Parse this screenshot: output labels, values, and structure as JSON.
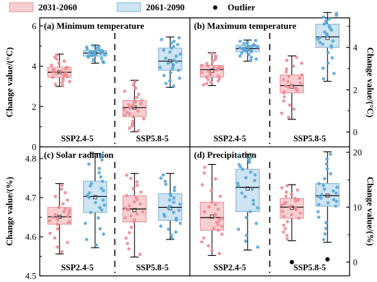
{
  "legend": {
    "items": [
      {
        "label": "2031-2060",
        "fill": "#f7cfd2",
        "stroke": "#e58f98"
      },
      {
        "label": "2061-2090",
        "fill": "#cfe4f3",
        "stroke": "#7fb2d6"
      },
      {
        "label": "Outlier"
      }
    ]
  },
  "colors": {
    "period1_box": "#f7cfd2",
    "period1_edge": "#e58f98",
    "period1_dot": "#ef8a93",
    "period2_box": "#cfe4f3",
    "period2_edge": "#7fb2d6",
    "period2_dot": "#55a6d8"
  },
  "chart_data": [
    {
      "type": "box",
      "id": "a",
      "title": "(a) Minimum temperature",
      "ylabel": "Change value/(°C)",
      "ylim": [
        0,
        6.4
      ],
      "yticks": [
        0,
        2,
        4,
        6
      ],
      "groups": [
        "SSP2.4-5",
        "SSP5.8-5"
      ],
      "boxes": [
        {
          "group": "SSP2.4-5",
          "series": "2031-2060",
          "min": 3.0,
          "q1": 3.45,
          "median": 3.7,
          "mean": 3.7,
          "q3": 3.95,
          "max": 4.6
        },
        {
          "group": "SSP2.4-5",
          "series": "2061-2090",
          "min": 4.15,
          "q1": 4.5,
          "median": 4.65,
          "mean": 4.65,
          "q3": 4.78,
          "max": 5.05
        },
        {
          "group": "SSP5.8-5",
          "series": "2031-2060",
          "min": 0.75,
          "q1": 1.5,
          "median": 1.95,
          "mean": 1.95,
          "q3": 2.3,
          "max": 3.3
        },
        {
          "group": "SSP5.8-5",
          "series": "2061-2090",
          "min": 2.95,
          "q1": 3.8,
          "median": 4.25,
          "mean": 4.25,
          "q3": 4.9,
          "max": 5.45
        }
      ]
    },
    {
      "type": "box",
      "id": "b",
      "title": "(b) Maximum temperature",
      "ylabel": "Change value/(°C)",
      "ylim": [
        -0.7,
        5.4
      ],
      "yticks": [
        0,
        2,
        4
      ],
      "groups": [
        "SSP2.4-5",
        "SSP5.8-5"
      ],
      "boxes": [
        {
          "group": "SSP2.4-5",
          "series": "2031-2060",
          "min": 2.2,
          "q1": 2.6,
          "median": 2.95,
          "mean": 2.9,
          "q3": 3.15,
          "max": 3.75
        },
        {
          "group": "SSP2.4-5",
          "series": "2061-2090",
          "min": 3.35,
          "q1": 3.8,
          "median": 3.95,
          "mean": 3.95,
          "q3": 4.1,
          "max": 4.35
        },
        {
          "group": "SSP5.8-5",
          "series": "2031-2060",
          "min": 0.6,
          "q1": 1.85,
          "median": 2.2,
          "mean": 2.15,
          "q3": 2.7,
          "max": 3.6
        },
        {
          "group": "SSP5.8-5",
          "series": "2061-2090",
          "min": 2.4,
          "q1": 4.0,
          "median": 4.5,
          "mean": 4.45,
          "q3": 5.1,
          "max": 5.65
        }
      ]
    },
    {
      "type": "box",
      "id": "c",
      "title": "(c) Solar radiation",
      "ylabel": "Change value/(%)",
      "ylim": [
        4.5,
        4.83
      ],
      "yticks": [
        4.5,
        4.6,
        4.7,
        4.8
      ],
      "groups": [
        "SSP2.4-5",
        "SSP5.8-5"
      ],
      "boxes": [
        {
          "group": "SSP2.4-5",
          "series": "2031-2060",
          "min": 4.556,
          "q1": 4.632,
          "median": 4.651,
          "mean": 4.651,
          "q3": 4.675,
          "max": 4.736
        },
        {
          "group": "SSP2.4-5",
          "series": "2061-2090",
          "min": 4.572,
          "q1": 4.662,
          "median": 4.703,
          "mean": 4.701,
          "q3": 4.742,
          "max": 4.813
        },
        {
          "group": "SSP5.8-5",
          "series": "2031-2060",
          "min": 4.548,
          "q1": 4.638,
          "median": 4.671,
          "mean": 4.668,
          "q3": 4.705,
          "max": 4.762
        },
        {
          "group": "SSP5.8-5",
          "series": "2061-2090",
          "min": 4.593,
          "q1": 4.642,
          "median": 4.675,
          "mean": 4.673,
          "q3": 4.71,
          "max": 4.762
        }
      ]
    },
    {
      "type": "box",
      "id": "d",
      "title": "(d) Precipitation",
      "ylabel": "Change value/(%)",
      "ylim": [
        -2.5,
        21
      ],
      "yticks": [
        0,
        10,
        20
      ],
      "groups": [
        "SSP2.4-5",
        "SSP5.8-5"
      ],
      "boxes": [
        {
          "group": "SSP2.4-5",
          "series": "2031-2060",
          "min": 1.2,
          "q1": 5.8,
          "median": 8.1,
          "mean": 8.3,
          "q3": 10.9,
          "max": 17.8
        },
        {
          "group": "SSP2.4-5",
          "series": "2061-2090",
          "min": 2.2,
          "q1": 9.2,
          "median": 13.6,
          "mean": 13.4,
          "q3": 16.9,
          "max": 19.7
        },
        {
          "group": "SSP5.8-5",
          "series": "2031-2060",
          "min": 3.9,
          "q1": 8.0,
          "median": 10.0,
          "mean": 9.9,
          "q3": 11.6,
          "max": 14.1,
          "outliers": [
            0.0
          ]
        },
        {
          "group": "SSP5.8-5",
          "series": "2061-2090",
          "min": 3.6,
          "q1": 10.2,
          "median": 12.1,
          "mean": 12.1,
          "q3": 14.3,
          "max": 20.1,
          "outliers": [
            0.5
          ]
        }
      ]
    }
  ]
}
